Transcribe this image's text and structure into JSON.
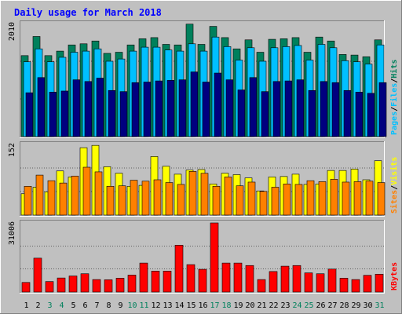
{
  "colors": {
    "background": "#c0c0c0",
    "panel": "#c0c0c0",
    "title": "#0000ff",
    "hits": "#00805c",
    "files": "#00c0ff",
    "pages": "#00007f",
    "visits": "#ffff00",
    "sites": "#ff8000",
    "kbytes": "#ff0000",
    "weekday": "#000000",
    "weekend": "#00805c"
  },
  "chart_data": {
    "type": "bar",
    "title": "Daily usage for March 2018",
    "categories": [
      "1",
      "2",
      "3",
      "4",
      "5",
      "6",
      "7",
      "8",
      "9",
      "10",
      "11",
      "12",
      "13",
      "14",
      "15",
      "16",
      "17",
      "18",
      "19",
      "20",
      "21",
      "22",
      "23",
      "24",
      "25",
      "26",
      "27",
      "28",
      "29",
      "30",
      "31"
    ],
    "weekend_days": [
      "3",
      "4",
      "10",
      "11",
      "17",
      "18",
      "24",
      "25",
      "31"
    ],
    "panels": [
      {
        "max_label": "2010",
        "ymax": 2010,
        "legend": [
          {
            "text": "Hits",
            "color_key": "hits"
          },
          {
            "text": "/",
            "color_key": "weekday"
          },
          {
            "text": "Files",
            "color_key": "files"
          },
          {
            "text": "/",
            "color_key": "weekday"
          },
          {
            "text": "Pages",
            "color_key": "files"
          }
        ],
        "series": [
          {
            "name": "Hits",
            "color_key": "hits",
            "values": [
              1440,
              1780,
              1440,
              1520,
              1630,
              1650,
              1700,
              1480,
              1500,
              1630,
              1740,
              1760,
              1640,
              1630,
              2000,
              1640,
              1960,
              1760,
              1560,
              1720,
              1500,
              1730,
              1740,
              1760,
              1500,
              1770,
              1700,
              1460,
              1450,
              1420,
              1720
            ]
          },
          {
            "name": "Files",
            "color_key": "files",
            "values": [
              1330,
              1560,
              1330,
              1410,
              1500,
              1520,
              1560,
              1340,
              1380,
              1520,
              1590,
              1590,
              1540,
              1520,
              1650,
              1520,
              1770,
              1600,
              1360,
              1580,
              1340,
              1580,
              1600,
              1620,
              1360,
              1640,
              1580,
              1350,
              1330,
              1290,
              1630
            ]
          },
          {
            "name": "Pages",
            "color_key": "pages",
            "values": [
              780,
              1050,
              790,
              810,
              1010,
              980,
              1040,
              820,
              800,
              960,
              970,
              990,
              1000,
              1010,
              1150,
              970,
              1130,
              1010,
              830,
              1050,
              800,
              980,
              990,
              1010,
              820,
              980,
              960,
              820,
              790,
              770,
              960
            ]
          }
        ]
      },
      {
        "max_label": "152",
        "ymax": 152,
        "legend": [
          {
            "text": "Visits",
            "color_key": "visits"
          },
          {
            "text": "/",
            "color_key": "weekday"
          },
          {
            "text": "Sites",
            "color_key": "sites"
          }
        ],
        "series": [
          {
            "name": "Visits",
            "color_key": "visits",
            "values": [
              46,
              60,
              50,
              95,
              82,
              145,
              150,
              104,
              90,
              62,
              64,
              126,
              105,
              88,
              97,
              98,
              67,
              90,
              87,
              80,
              52,
              82,
              83,
              88,
              66,
              67,
              96,
              96,
              99,
              76,
              117
            ]
          },
          {
            "name": "Sites",
            "color_key": "sites",
            "values": [
              62,
              86,
              74,
              69,
              84,
              103,
              93,
              62,
              63,
              75,
              73,
              76,
              70,
              66,
              94,
              90,
              62,
              82,
              63,
              71,
              51,
              60,
              67,
              66,
              74,
              72,
              77,
              71,
              72,
              73,
              70
            ]
          }
        ]
      },
      {
        "max_label": "31006",
        "ymax": 31006,
        "legend": [
          {
            "text": "KBytes",
            "color_key": "kbytes"
          }
        ],
        "series": [
          {
            "name": "KBytes",
            "color_key": "kbytes",
            "values": [
              4300,
              15200,
              4700,
              6300,
              7200,
              8200,
              5600,
              5500,
              6200,
              7600,
              13000,
              9400,
              9400,
              21000,
              12300,
              10200,
              31006,
              13000,
              13000,
              11900,
              5600,
              9200,
              11600,
              11900,
              8600,
              8200,
              10300,
              6200,
              5600,
              7500,
              8000
            ]
          }
        ]
      }
    ]
  }
}
